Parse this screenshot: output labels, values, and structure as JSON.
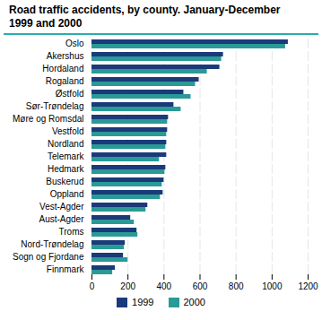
{
  "chart_data": {
    "type": "bar",
    "orientation": "horizontal",
    "title": "Road traffic accidents, by county. January-December\n1999 and 2000",
    "categories": [
      "Oslo",
      "Akershus",
      "Hordaland",
      "Rogaland",
      "Østfold",
      "Sør-Trøndelag",
      "Møre og Romsdal",
      "Vestfold",
      "Nordland",
      "Telemark",
      "Hedmark",
      "Buskerud",
      "Oppland",
      "Vest-Agder",
      "Aust-Agder",
      "Troms",
      "Nord-Trøndelag",
      "Sogn og Fjordane",
      "Finnmark"
    ],
    "series": [
      {
        "name": "1999",
        "color": "#1a3a7a",
        "values": [
          1090,
          730,
          710,
          595,
          510,
          455,
          425,
          420,
          415,
          415,
          410,
          400,
          395,
          310,
          215,
          250,
          185,
          175,
          130
        ]
      },
      {
        "name": "2000",
        "color": "#2a9a96",
        "values": [
          1075,
          720,
          640,
          575,
          550,
          495,
          420,
          415,
          410,
          375,
          405,
          390,
          380,
          300,
          235,
          255,
          180,
          200,
          115
        ]
      }
    ],
    "xlim": [
      0,
      1200
    ],
    "xticks": [
      0,
      200,
      400,
      600,
      800,
      1000,
      1200
    ],
    "grid": true,
    "legend": "bottom"
  }
}
